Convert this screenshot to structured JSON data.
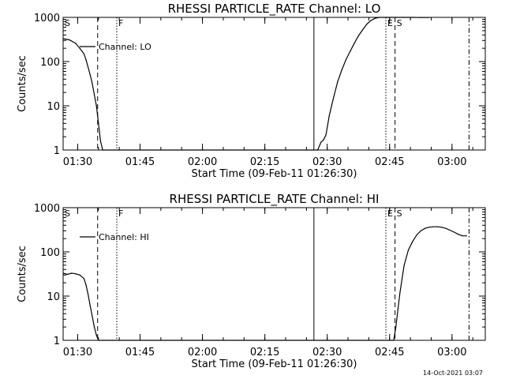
{
  "chart_data": [
    {
      "type": "line",
      "title": "RHESSI PARTICLE_RATE Channel: LO",
      "xlabel": "Start Time (09-Feb-11 01:26:30)",
      "ylabel": "Counts/sec",
      "yscale": "log",
      "ylim": [
        1,
        1000
      ],
      "xlim_minutes": [
        0,
        101.5
      ],
      "xticks": [
        "01:30",
        "01:45",
        "02:00",
        "02:15",
        "02:30",
        "02:45",
        "03:00"
      ],
      "yticks": [
        "1",
        "10",
        "100",
        "1000"
      ],
      "legend": {
        "position": "top-left",
        "entries": [
          "Channel: LO"
        ]
      },
      "series": [
        {
          "name": "Channel: LO",
          "x_minutes": [
            0,
            1.5,
            3,
            4,
            5,
            5.5,
            6,
            6.5,
            7,
            7.5,
            8,
            8.5,
            9,
            9.5,
            61.2,
            62,
            62.6,
            63.2,
            64,
            65,
            66,
            67,
            68,
            69,
            70,
            71,
            72,
            73,
            74,
            75,
            76,
            77,
            78,
            79,
            80,
            82,
            84,
            86,
            88
          ],
          "values": [
            330,
            310,
            260,
            200,
            150,
            110,
            75,
            50,
            32,
            18,
            10,
            4,
            1.6,
            1,
            1,
            1.5,
            1.7,
            2.2,
            6,
            15,
            35,
            65,
            110,
            170,
            260,
            380,
            520,
            700,
            850,
            950,
            1000,
            1000,
            1000,
            1000,
            1000,
            1000,
            1000,
            990,
            990
          ]
        }
      ],
      "markers": [
        {
          "label": "S",
          "minute": 0,
          "style": "solid"
        },
        {
          "label": "",
          "minute": 8.3,
          "style": "dashed"
        },
        {
          "label": "F",
          "minute": 12.9,
          "style": "dotted"
        },
        {
          "label": "",
          "minute": 60.3,
          "style": "solid"
        },
        {
          "label": "E",
          "minute": 77.6,
          "style": "dotted"
        },
        {
          "label": "S",
          "minute": 79.8,
          "style": "dashed"
        },
        {
          "label": "",
          "minute": 97.6,
          "style": "dashdot"
        }
      ]
    },
    {
      "type": "line",
      "title": "RHESSI PARTICLE_RATE Channel: HI",
      "xlabel": "Start Time (09-Feb-11 01:26:30)",
      "ylabel": "Counts/sec",
      "yscale": "log",
      "ylim": [
        1,
        1000
      ],
      "xlim_minutes": [
        0,
        101.5
      ],
      "xticks": [
        "01:30",
        "01:45",
        "02:00",
        "02:15",
        "02:30",
        "02:45",
        "03:00"
      ],
      "yticks": [
        "1",
        "10",
        "100",
        "1000"
      ],
      "legend": {
        "position": "top-left",
        "entries": [
          "Channel: HI"
        ]
      },
      "series": [
        {
          "name": "Channel: HI",
          "x_minutes": [
            0,
            1,
            2,
            3,
            4,
            5,
            5.5,
            6,
            6.5,
            7,
            7.5,
            8,
            8.5,
            79.5,
            80,
            80.5,
            81,
            81.5,
            82,
            83,
            84,
            85,
            86,
            87,
            88,
            89,
            90,
            91,
            92,
            93,
            94,
            95,
            96,
            97
          ],
          "values": [
            33,
            31,
            33,
            32,
            30,
            25,
            18,
            11,
            6,
            3.5,
            2,
            1.3,
            1,
            1,
            2,
            5,
            12,
            25,
            50,
            110,
            170,
            240,
            300,
            340,
            360,
            370,
            370,
            360,
            340,
            310,
            280,
            250,
            230,
            230
          ]
        }
      ],
      "markers": [
        {
          "label": "S",
          "minute": 0,
          "style": "solid"
        },
        {
          "label": "",
          "minute": 8.3,
          "style": "dashed"
        },
        {
          "label": "F",
          "minute": 12.9,
          "style": "dotted"
        },
        {
          "label": "",
          "minute": 60.3,
          "style": "solid"
        },
        {
          "label": "E",
          "minute": 77.6,
          "style": "dotted"
        },
        {
          "label": "S",
          "minute": 79.8,
          "style": "dashed"
        },
        {
          "label": "",
          "minute": 97.6,
          "style": "dashdot"
        }
      ]
    }
  ],
  "footer": {
    "timestamp": "14-Oct-2021 03:07"
  }
}
